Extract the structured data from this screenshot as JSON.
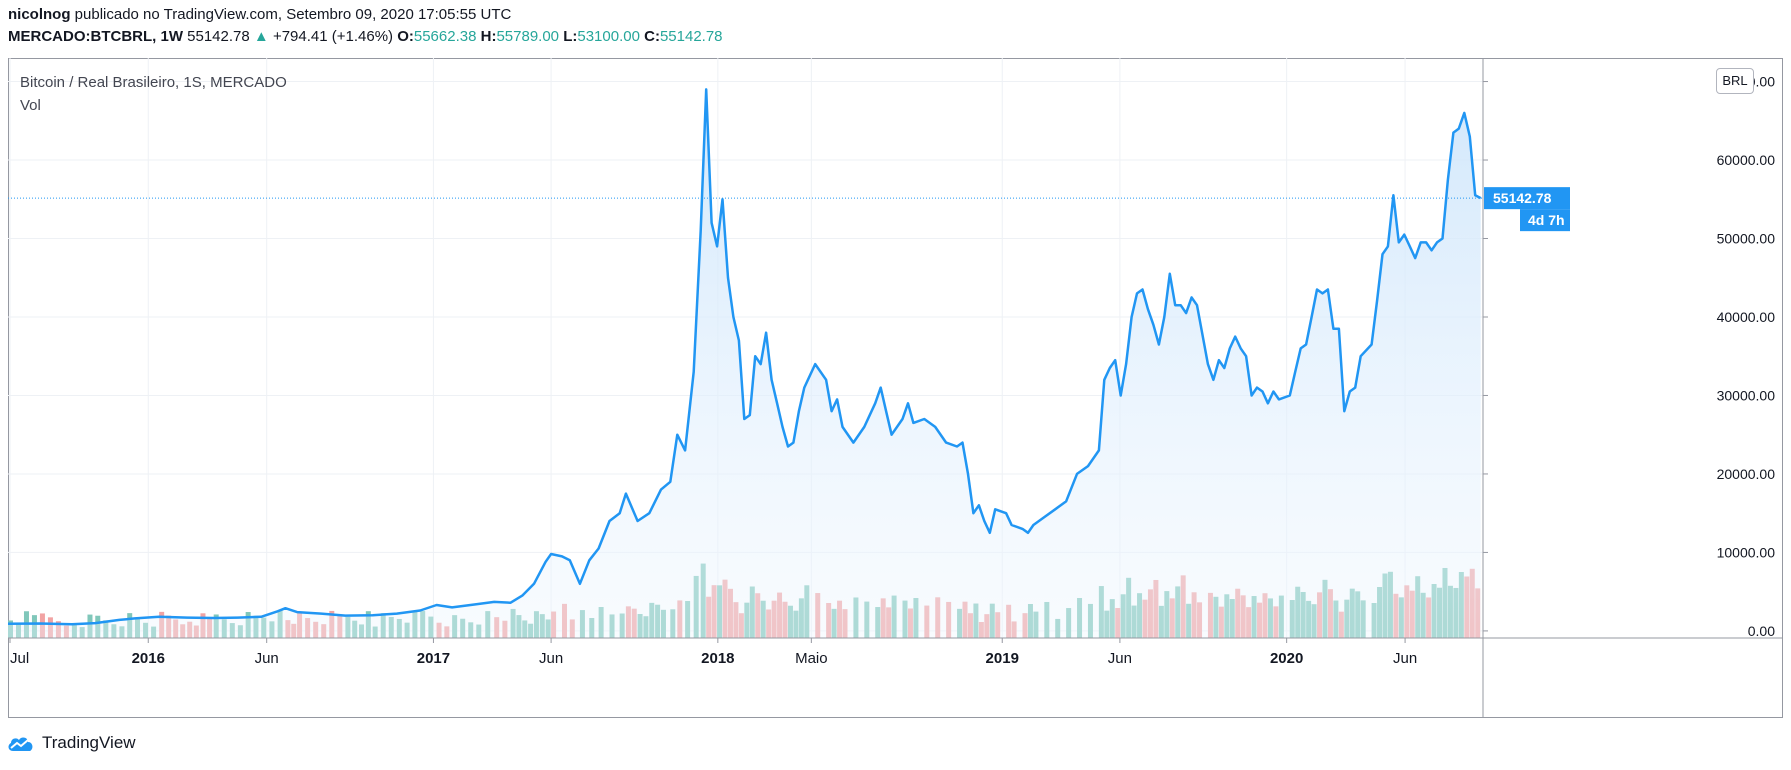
{
  "header": {
    "author": "nicolnog",
    "published_text": "publicado no TradingView.com, Setembro 09, 2020 17:05:55 UTC",
    "symbol": "MERCADO:BTCBRL, 1W",
    "last": "55142.78",
    "change_arrow": "▲",
    "change": "+794.41 (+1.46%)",
    "open_label": "O:",
    "open": "55662.38",
    "high_label": "H:",
    "high": "55789.00",
    "low_label": "L:",
    "low": "53100.00",
    "close_label": "C:",
    "close": "55142.78"
  },
  "legend": {
    "title": "Bitcoin / Real Brasileiro, 1S, MERCADO",
    "volume": "Vol"
  },
  "currency_button": "BRL",
  "price_tag": {
    "value": "55142.78",
    "countdown": "4d 7h"
  },
  "brand": "TradingView",
  "colors": {
    "line": "#2196f3",
    "area_top": "#cfe6fb",
    "vol_up": "#80c7ba",
    "vol_down": "#f2a3a3",
    "up_text": "#26a69a",
    "grid": "#eef1f5"
  },
  "chart_data": {
    "type": "area",
    "x_start": "2015-07-05",
    "x_end": "2020-09-09",
    "ylim": [
      -6000,
      73000
    ],
    "y_ticks": [
      0,
      10000,
      20000,
      30000,
      40000,
      50000,
      60000,
      70000
    ],
    "y_tick_labels": [
      "0.00",
      "10000.00",
      "20000.00",
      "30000.00",
      "40000.00",
      "50000.00",
      "60000.00",
      "70000.00"
    ],
    "x_ticks": [
      {
        "date": "2015-07-01",
        "label": "Jul",
        "bold": false
      },
      {
        "date": "2016-01-01",
        "label": "2016",
        "bold": true
      },
      {
        "date": "2016-06-01",
        "label": "Jun",
        "bold": false
      },
      {
        "date": "2017-01-01",
        "label": "2017",
        "bold": true
      },
      {
        "date": "2017-06-01",
        "label": "Jun",
        "bold": false
      },
      {
        "date": "2018-01-01",
        "label": "2018",
        "bold": true
      },
      {
        "date": "2018-05-01",
        "label": "Maio",
        "bold": false
      },
      {
        "date": "2019-01-01",
        "label": "2019",
        "bold": true
      },
      {
        "date": "2019-06-01",
        "label": "Jun",
        "bold": false
      },
      {
        "date": "2020-01-01",
        "label": "2020",
        "bold": true
      },
      {
        "date": "2020-06-01",
        "label": "Jun",
        "bold": false
      }
    ],
    "last_price": 55142.78,
    "series": [
      {
        "name": "BTCBRL",
        "points": [
          [
            "2015-07-05",
            900
          ],
          [
            "2015-08-15",
            950
          ],
          [
            "2015-09-25",
            850
          ],
          [
            "2015-10-25",
            1000
          ],
          [
            "2015-11-25",
            1400
          ],
          [
            "2015-12-15",
            1600
          ],
          [
            "2016-01-15",
            1800
          ],
          [
            "2016-02-20",
            1700
          ],
          [
            "2016-03-25",
            1650
          ],
          [
            "2016-04-25",
            1700
          ],
          [
            "2016-05-25",
            1800
          ],
          [
            "2016-06-15",
            2500
          ],
          [
            "2016-06-25",
            2900
          ],
          [
            "2016-07-10",
            2400
          ],
          [
            "2016-08-10",
            2200
          ],
          [
            "2016-09-10",
            1950
          ],
          [
            "2016-10-15",
            2000
          ],
          [
            "2016-11-15",
            2200
          ],
          [
            "2016-12-15",
            2600
          ],
          [
            "2017-01-05",
            3300
          ],
          [
            "2017-01-25",
            3000
          ],
          [
            "2017-02-25",
            3400
          ],
          [
            "2017-03-20",
            3700
          ],
          [
            "2017-04-10",
            3600
          ],
          [
            "2017-04-25",
            4500
          ],
          [
            "2017-05-10",
            6000
          ],
          [
            "2017-05-25",
            8800
          ],
          [
            "2017-06-01",
            9800
          ],
          [
            "2017-06-15",
            9500
          ],
          [
            "2017-06-25",
            9000
          ],
          [
            "2017-07-08",
            6000
          ],
          [
            "2017-07-20",
            9000
          ],
          [
            "2017-08-01",
            10500
          ],
          [
            "2017-08-15",
            14000
          ],
          [
            "2017-08-28",
            15000
          ],
          [
            "2017-09-05",
            17500
          ],
          [
            "2017-09-20",
            14000
          ],
          [
            "2017-10-05",
            15000
          ],
          [
            "2017-10-20",
            18000
          ],
          [
            "2017-11-01",
            19000
          ],
          [
            "2017-11-10",
            25000
          ],
          [
            "2017-11-20",
            23000
          ],
          [
            "2017-12-01",
            33000
          ],
          [
            "2017-12-10",
            51000
          ],
          [
            "2017-12-17",
            69000
          ],
          [
            "2017-12-24",
            52000
          ],
          [
            "2017-12-31",
            49000
          ],
          [
            "2018-01-07",
            55000
          ],
          [
            "2018-01-14",
            45000
          ],
          [
            "2018-01-21",
            40000
          ],
          [
            "2018-01-28",
            37000
          ],
          [
            "2018-02-04",
            27000
          ],
          [
            "2018-02-11",
            27500
          ],
          [
            "2018-02-18",
            35000
          ],
          [
            "2018-02-25",
            34000
          ],
          [
            "2018-03-04",
            38000
          ],
          [
            "2018-03-11",
            32000
          ],
          [
            "2018-03-18",
            29000
          ],
          [
            "2018-03-25",
            26000
          ],
          [
            "2018-04-01",
            23500
          ],
          [
            "2018-04-08",
            24000
          ],
          [
            "2018-04-15",
            28000
          ],
          [
            "2018-04-22",
            31000
          ],
          [
            "2018-05-06",
            34000
          ],
          [
            "2018-05-20",
            32000
          ],
          [
            "2018-05-27",
            28000
          ],
          [
            "2018-06-03",
            29500
          ],
          [
            "2018-06-10",
            26000
          ],
          [
            "2018-06-24",
            24000
          ],
          [
            "2018-07-08",
            26000
          ],
          [
            "2018-07-22",
            29000
          ],
          [
            "2018-07-29",
            31000
          ],
          [
            "2018-08-05",
            28000
          ],
          [
            "2018-08-12",
            25000
          ],
          [
            "2018-08-26",
            27000
          ],
          [
            "2018-09-02",
            29000
          ],
          [
            "2018-09-09",
            26500
          ],
          [
            "2018-09-23",
            27000
          ],
          [
            "2018-10-07",
            26000
          ],
          [
            "2018-10-21",
            24000
          ],
          [
            "2018-11-04",
            23500
          ],
          [
            "2018-11-11",
            24000
          ],
          [
            "2018-11-18",
            20000
          ],
          [
            "2018-11-25",
            15000
          ],
          [
            "2018-12-02",
            16000
          ],
          [
            "2018-12-09",
            14000
          ],
          [
            "2018-12-16",
            12500
          ],
          [
            "2018-12-23",
            15500
          ],
          [
            "2019-01-06",
            15000
          ],
          [
            "2019-01-13",
            13500
          ],
          [
            "2019-01-27",
            13000
          ],
          [
            "2019-02-03",
            12500
          ],
          [
            "2019-02-10",
            13500
          ],
          [
            "2019-02-24",
            14500
          ],
          [
            "2019-03-10",
            15500
          ],
          [
            "2019-03-24",
            16500
          ],
          [
            "2019-04-07",
            20000
          ],
          [
            "2019-04-21",
            21000
          ],
          [
            "2019-05-05",
            23000
          ],
          [
            "2019-05-12",
            32000
          ],
          [
            "2019-05-19",
            33500
          ],
          [
            "2019-05-26",
            34500
          ],
          [
            "2019-06-02",
            30000
          ],
          [
            "2019-06-09",
            34000
          ],
          [
            "2019-06-16",
            40000
          ],
          [
            "2019-06-23",
            43000
          ],
          [
            "2019-06-30",
            43500
          ],
          [
            "2019-07-07",
            41000
          ],
          [
            "2019-07-14",
            39000
          ],
          [
            "2019-07-21",
            36500
          ],
          [
            "2019-07-28",
            40000
          ],
          [
            "2019-08-04",
            45500
          ],
          [
            "2019-08-11",
            41500
          ],
          [
            "2019-08-18",
            41500
          ],
          [
            "2019-08-25",
            40500
          ],
          [
            "2019-09-01",
            42500
          ],
          [
            "2019-09-08",
            41500
          ],
          [
            "2019-09-22",
            34000
          ],
          [
            "2019-09-29",
            32000
          ],
          [
            "2019-10-06",
            34500
          ],
          [
            "2019-10-13",
            33500
          ],
          [
            "2019-10-20",
            36000
          ],
          [
            "2019-10-27",
            37500
          ],
          [
            "2019-11-03",
            36000
          ],
          [
            "2019-11-10",
            35000
          ],
          [
            "2019-11-17",
            30000
          ],
          [
            "2019-11-24",
            31000
          ],
          [
            "2019-12-01",
            30500
          ],
          [
            "2019-12-08",
            29000
          ],
          [
            "2019-12-15",
            30500
          ],
          [
            "2019-12-22",
            29500
          ],
          [
            "2020-01-05",
            30000
          ],
          [
            "2020-01-12",
            33000
          ],
          [
            "2020-01-19",
            36000
          ],
          [
            "2020-01-26",
            36500
          ],
          [
            "2020-02-02",
            40000
          ],
          [
            "2020-02-09",
            43500
          ],
          [
            "2020-02-16",
            43000
          ],
          [
            "2020-02-23",
            43500
          ],
          [
            "2020-03-01",
            38500
          ],
          [
            "2020-03-08",
            38500
          ],
          [
            "2020-03-15",
            28000
          ],
          [
            "2020-03-22",
            30500
          ],
          [
            "2020-03-29",
            31000
          ],
          [
            "2020-04-05",
            35000
          ],
          [
            "2020-04-19",
            36500
          ],
          [
            "2020-04-26",
            42000
          ],
          [
            "2020-05-03",
            48000
          ],
          [
            "2020-05-10",
            49000
          ],
          [
            "2020-05-17",
            55500
          ],
          [
            "2020-05-24",
            49500
          ],
          [
            "2020-05-31",
            50500
          ],
          [
            "2020-06-07",
            49000
          ],
          [
            "2020-06-14",
            47500
          ],
          [
            "2020-06-21",
            49500
          ],
          [
            "2020-06-28",
            49500
          ],
          [
            "2020-07-05",
            48500
          ],
          [
            "2020-07-12",
            49500
          ],
          [
            "2020-07-19",
            50000
          ],
          [
            "2020-07-26",
            57500
          ],
          [
            "2020-08-02",
            63500
          ],
          [
            "2020-08-09",
            64000
          ],
          [
            "2020-08-16",
            66000
          ],
          [
            "2020-08-23",
            63000
          ],
          [
            "2020-08-30",
            55500
          ],
          [
            "2020-09-06",
            55142.78
          ]
        ]
      }
    ]
  }
}
